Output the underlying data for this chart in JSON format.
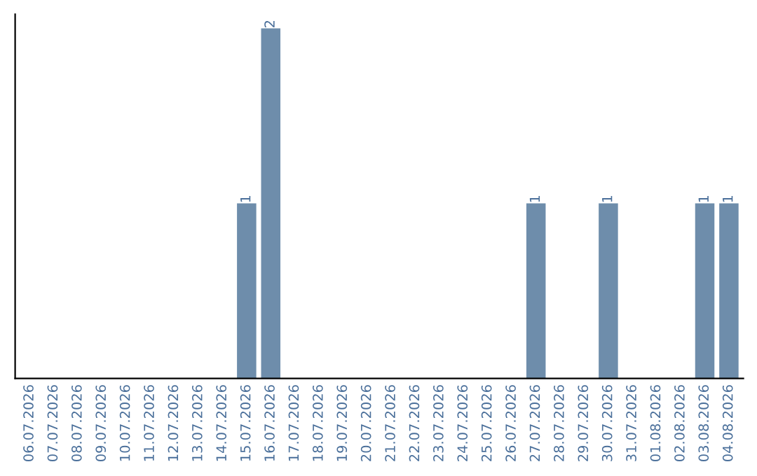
{
  "chart_data": {
    "type": "bar",
    "categories": [
      "06.07.2026",
      "07.07.2026",
      "08.07.2026",
      "09.07.2026",
      "10.07.2026",
      "11.07.2026",
      "12.07.2026",
      "13.07.2026",
      "14.07.2026",
      "15.07.2026",
      "16.07.2026",
      "17.07.2026",
      "18.07.2026",
      "19.07.2026",
      "20.07.2026",
      "21.07.2026",
      "22.07.2026",
      "23.07.2026",
      "24.07.2026",
      "25.07.2026",
      "26.07.2026",
      "27.07.2026",
      "28.07.2026",
      "29.07.2026",
      "30.07.2026",
      "31.07.2026",
      "01.08.2026",
      "02.08.2026",
      "03.08.2026",
      "04.08.2026"
    ],
    "values": [
      0,
      0,
      0,
      0,
      0,
      0,
      0,
      0,
      0,
      1,
      2,
      0,
      0,
      0,
      0,
      0,
      0,
      0,
      0,
      0,
      0,
      1,
      0,
      0,
      1,
      0,
      0,
      0,
      1,
      1
    ],
    "color": "#6e8dab",
    "value_labels": [
      null,
      null,
      null,
      null,
      null,
      null,
      null,
      null,
      null,
      "1",
      "2",
      null,
      null,
      null,
      null,
      null,
      null,
      null,
      null,
      null,
      null,
      "1",
      null,
      null,
      "1",
      null,
      null,
      null,
      "1",
      "1"
    ],
    "tick_labels": "x",
    "grid": false
  }
}
